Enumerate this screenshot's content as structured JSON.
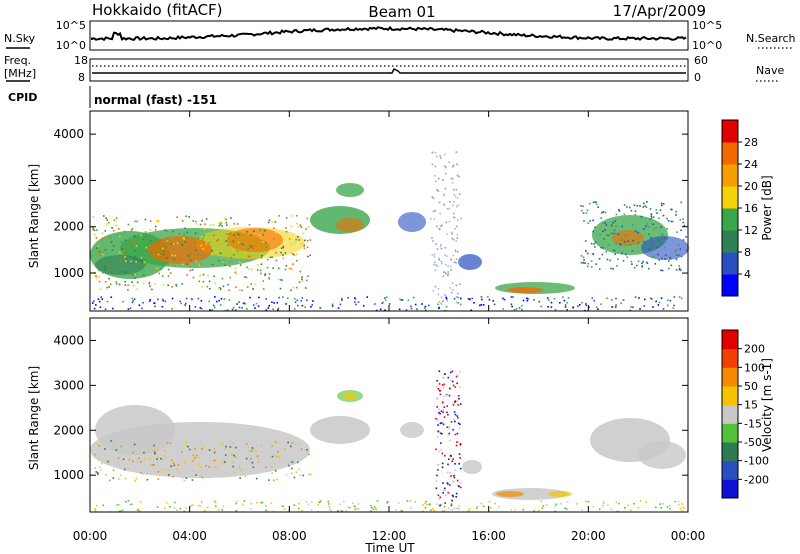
{
  "header": {
    "station": "Hokkaido (fitACF)",
    "beam": "Beam 01",
    "date": "17/Apr/2009"
  },
  "noise_panel": {
    "left_label": "N.Sky",
    "right_label": "N.Search",
    "tick_top": "10^5",
    "tick_bottom": "10^0"
  },
  "freq_panel": {
    "label_1": "Freq.",
    "label_2": "[MHz]",
    "tick_top": "18",
    "tick_bottom": "8",
    "nave_label": "Nave",
    "nave_tick_top": "60",
    "nave_tick_bottom": "0"
  },
  "cpid": {
    "label": "CPID",
    "value": "normal (fast) -151"
  },
  "chart_data": [
    {
      "type": "heatmap",
      "name": "power",
      "ylabel": "Slant Range [km]",
      "yticks": [
        "4000",
        "3000",
        "2000",
        "1000"
      ],
      "ylim": [
        180,
        4500
      ],
      "colorbar_label": "Power [dB]",
      "colorbar_ticks": [
        "28",
        "24",
        "20",
        "16",
        "12",
        "8",
        "4"
      ],
      "colorbar_colors": [
        "#0000ff",
        "#2a4fbf",
        "#2f7f57",
        "#3aa64a",
        "#f5d20a",
        "#f5a000",
        "#f06a00",
        "#e00000"
      ]
    },
    {
      "type": "heatmap",
      "name": "velocity",
      "ylabel": "Slant Range [km]",
      "yticks": [
        "4000",
        "3000",
        "2000",
        "1000"
      ],
      "ylim": [
        180,
        4500
      ],
      "colorbar_label": "Velocity [m s-1]",
      "colorbar_ticks": [
        "200",
        "100",
        "50",
        "15",
        "-15",
        "-50",
        "-100",
        "-200"
      ],
      "colorbar_colors": [
        "#1010d0",
        "#2a50c0",
        "#2e7a55",
        "#50c23a",
        "#c8c8c8",
        "#f5c400",
        "#f58a00",
        "#f04000",
        "#e00000"
      ]
    }
  ],
  "xaxis": {
    "title": "Time UT",
    "ticks": [
      "00:00",
      "04:00",
      "08:00",
      "12:00",
      "16:00",
      "20:00",
      "00:00"
    ]
  }
}
